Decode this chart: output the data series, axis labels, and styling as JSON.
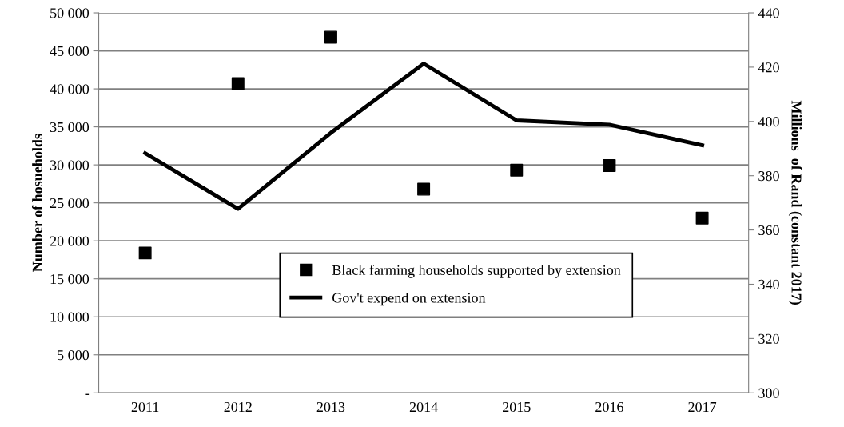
{
  "chart_data": {
    "type": "scatter",
    "categories": [
      "2011",
      "2012",
      "2013",
      "2014",
      "2015",
      "2016",
      "2017"
    ],
    "ylabel": "Number of hosueholds",
    "y2label": "Millions  of Rand (constant 2017)",
    "ylim": [
      0,
      50000
    ],
    "yticks": [
      {
        "value": 0,
        "label": "-"
      },
      {
        "value": 5000,
        "label": "5 000"
      },
      {
        "value": 10000,
        "label": "10 000"
      },
      {
        "value": 15000,
        "label": "15 000"
      },
      {
        "value": 20000,
        "label": "20 000"
      },
      {
        "value": 25000,
        "label": "25 000"
      },
      {
        "value": 30000,
        "label": "30 000"
      },
      {
        "value": 35000,
        "label": "35 000"
      },
      {
        "value": 40000,
        "label": "40 000"
      },
      {
        "value": 45000,
        "label": "45 000"
      },
      {
        "value": 50000,
        "label": "50 000"
      }
    ],
    "y2lim": [
      300,
      440
    ],
    "y2ticks": [
      300,
      320,
      340,
      360,
      380,
      400,
      420,
      440
    ],
    "grid": "y",
    "legend": "bottom",
    "series": [
      {
        "name": "Black farming households supported by extension",
        "marker": "square",
        "color": "#000000",
        "values": [
          18400,
          40700,
          46800,
          26800,
          29300,
          29900,
          23000
        ]
      },
      {
        "name": "Gov't expend on extension",
        "type": "line",
        "axis": "y2",
        "line_style": "solid",
        "marker": "none",
        "color": "#000000",
        "values": [
          388.3,
          367.8,
          395.8,
          421.3,
          400.4,
          398.8,
          391.2
        ]
      }
    ]
  }
}
